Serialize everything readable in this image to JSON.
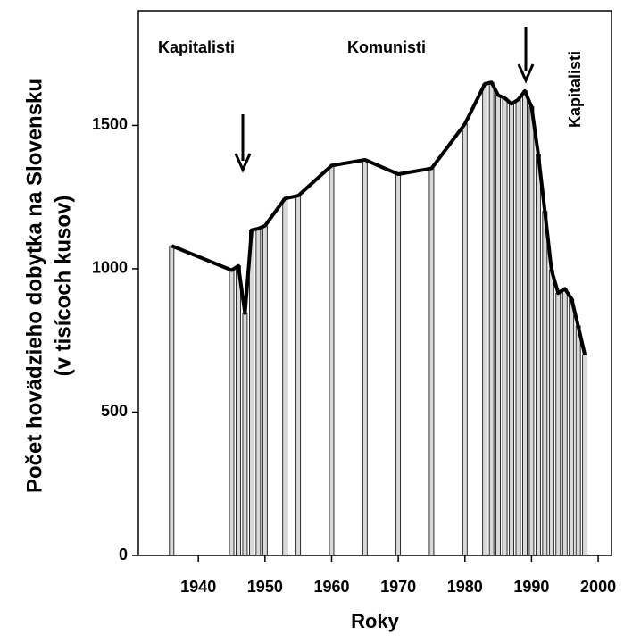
{
  "chart_data": {
    "type": "bar",
    "x_label": "Roky",
    "y_label": [
      "Počet hovädzieho dobytka na Slovensku",
      "(v tisícoch kusov)"
    ],
    "annotations": [
      "Kapitalisti",
      "Komunisti",
      "Kapitalisti"
    ],
    "x": [
      1936,
      1945,
      1946,
      1947,
      1948,
      1949,
      1950,
      1953,
      1955,
      1960,
      1965,
      1970,
      1975,
      1980,
      1983,
      1984,
      1985,
      1986,
      1987,
      1988,
      1989,
      1990,
      1991,
      1992,
      1993,
      1994,
      1995,
      1996,
      1997,
      1998
    ],
    "values": [
      1080,
      995,
      1010,
      845,
      1135,
      1140,
      1150,
      1245,
      1255,
      1360,
      1380,
      1330,
      1350,
      1505,
      1645,
      1650,
      1605,
      1595,
      1575,
      1590,
      1620,
      1565,
      1400,
      1200,
      995,
      915,
      930,
      895,
      800,
      700
    ],
    "color": "#d9d9d9",
    "line_color": "#000000",
    "xlim": [
      1931,
      2002
    ],
    "xticks": [
      1940,
      1950,
      1960,
      1970,
      1980,
      1990,
      2000
    ],
    "ylim": [
      0,
      1900
    ],
    "yticks": [
      0,
      500,
      1000,
      1500
    ]
  }
}
